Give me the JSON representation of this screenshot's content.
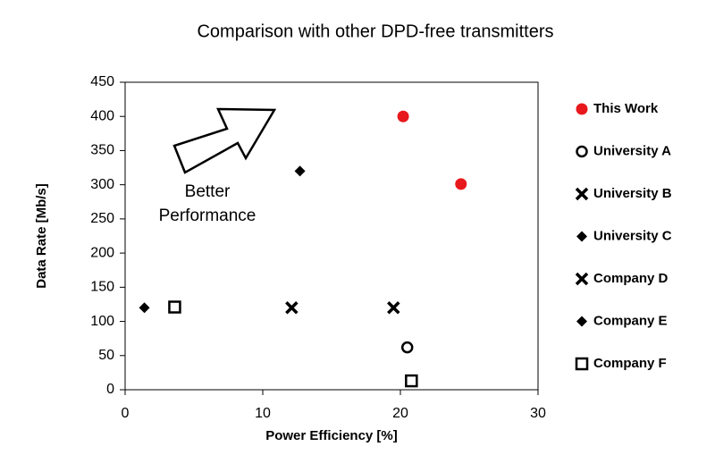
{
  "chart_data": {
    "type": "scatter",
    "title": "Comparison with other DPD-free transmitters",
    "x_label": "Power Efficiency [%]",
    "y_label": "Data Rate [Mb/s]",
    "annotation": [
      "Better",
      "Performance"
    ],
    "xlim": [
      0,
      30
    ],
    "xticks": [
      0,
      10,
      20,
      30
    ],
    "ylim": [
      0,
      450
    ],
    "yticks": [
      0,
      50,
      100,
      150,
      200,
      250,
      300,
      350,
      400,
      450
    ],
    "series": [
      {
        "name": "This Work",
        "color": "#e8191d",
        "marker": "circle",
        "x": [
          20.2,
          24.4
        ],
        "values": [
          400,
          301
        ]
      },
      {
        "name": "University A",
        "color": "#000000",
        "marker": "open-circle",
        "x": [
          20.5
        ],
        "values": [
          62
        ]
      },
      {
        "name": "University B",
        "color": "#000000",
        "marker": "x",
        "x": [
          19.5
        ],
        "values": [
          120
        ]
      },
      {
        "name": "University C",
        "color": "#000000",
        "marker": "diamond",
        "x": [
          12.7
        ],
        "values": [
          320
        ]
      },
      {
        "name": "Company D",
        "color": "#000000",
        "marker": "x",
        "x": [
          12.1
        ],
        "values": [
          120
        ]
      },
      {
        "name": "Company E",
        "color": "#000000",
        "marker": "diamond",
        "x": [
          1.4
        ],
        "values": [
          120
        ]
      },
      {
        "name": "Company F",
        "color": "#000000",
        "marker": "open-square",
        "x": [
          3.6,
          20.8
        ],
        "values": [
          121,
          13
        ]
      }
    ]
  }
}
